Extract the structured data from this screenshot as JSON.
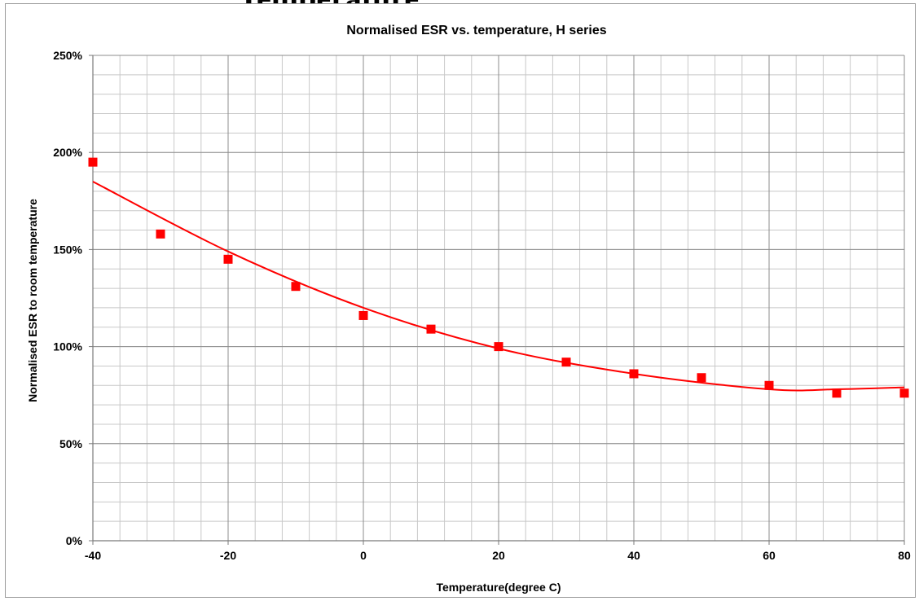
{
  "page": {
    "clipped_heading": "Temperature"
  },
  "chart_data": {
    "type": "scatter",
    "title": "Normalised ESR vs. temperature, H series",
    "xlabel": "Temperature(degree C)",
    "ylabel": "Normalised ESR to room temperature",
    "xlim": [
      -40,
      80
    ],
    "ylim": [
      0,
      250
    ],
    "x_ticks": [
      -40,
      -20,
      0,
      20,
      40,
      60,
      80
    ],
    "x_tick_labels": [
      "-40",
      "-20",
      "0",
      "20",
      "40",
      "60",
      "80"
    ],
    "y_ticks": [
      0,
      50,
      100,
      150,
      200,
      250
    ],
    "y_tick_labels": [
      "0%",
      "50%",
      "100%",
      "150%",
      "200%",
      "250%"
    ],
    "x_minor_step": 4,
    "y_minor_step": 10,
    "grid": true,
    "legend": "none",
    "marker_color": "#ff0000",
    "trend_color": "#ff0000",
    "points": [
      {
        "x": -40,
        "y": 195
      },
      {
        "x": -30,
        "y": 158
      },
      {
        "x": -20,
        "y": 145
      },
      {
        "x": -10,
        "y": 131
      },
      {
        "x": 0,
        "y": 116
      },
      {
        "x": 10,
        "y": 109
      },
      {
        "x": 20,
        "y": 100
      },
      {
        "x": 30,
        "y": 92
      },
      {
        "x": 40,
        "y": 86
      },
      {
        "x": 50,
        "y": 84
      },
      {
        "x": 60,
        "y": 80
      },
      {
        "x": 70,
        "y": 76
      },
      {
        "x": 80,
        "y": 76
      }
    ],
    "trendline": {
      "type": "polynomial",
      "points": [
        {
          "x": -40,
          "y": 185
        },
        {
          "x": -20,
          "y": 149
        },
        {
          "x": 0,
          "y": 120
        },
        {
          "x": 20,
          "y": 99
        },
        {
          "x": 40,
          "y": 86
        },
        {
          "x": 60,
          "y": 78
        },
        {
          "x": 70,
          "y": 78
        },
        {
          "x": 80,
          "y": 79
        }
      ]
    }
  }
}
